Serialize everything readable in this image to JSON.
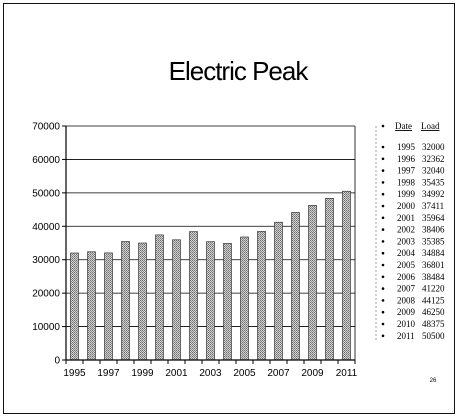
{
  "chart_data": {
    "type": "bar",
    "title": "Electric Peak",
    "categories": [
      "1995",
      "1996",
      "1997",
      "1998",
      "1999",
      "2000",
      "2001",
      "2002",
      "2003",
      "2004",
      "2005",
      "2006",
      "2007",
      "2008",
      "2009",
      "2010",
      "2011"
    ],
    "series": [
      {
        "values": [
          32000,
          32362,
          32040,
          35435,
          34992,
          37411,
          35964,
          38406,
          35385,
          34884,
          36801,
          38484,
          41220,
          44125,
          46250,
          48375,
          50500
        ]
      }
    ],
    "x_tick_labels": [
      "1995",
      "1997",
      "1999",
      "2001",
      "2003",
      "2005",
      "2007",
      "2009",
      "2011"
    ],
    "y_tick_labels": [
      "0",
      "10000",
      "20000",
      "30000",
      "40000",
      "50000",
      "60000",
      "70000"
    ],
    "y_ticks": [
      0,
      10000,
      20000,
      30000,
      40000,
      50000,
      60000,
      70000
    ],
    "ylim": [
      0,
      70000
    ],
    "grid": true,
    "legend_position": "right",
    "table_header": {
      "date": "Date",
      "load": "Load"
    },
    "table_rows": [
      {
        "date": "1995",
        "load": "32000"
      },
      {
        "date": "1996",
        "load": "32362"
      },
      {
        "date": "1997",
        "load": "32040"
      },
      {
        "date": "1998",
        "load": "35435"
      },
      {
        "date": "1999",
        "load": "34992"
      },
      {
        "date": "2000",
        "load": "37411"
      },
      {
        "date": "2001",
        "load": "35964"
      },
      {
        "date": "2002",
        "load": "38406"
      },
      {
        "date": "2003",
        "load": "35385"
      },
      {
        "date": "2004",
        "load": "34884"
      },
      {
        "date": "2005",
        "load": "36801"
      },
      {
        "date": "2006",
        "load": "38484"
      },
      {
        "date": "2007",
        "load": "41220"
      },
      {
        "date": "2008",
        "load": "44125"
      },
      {
        "date": "2009",
        "load": "46250"
      },
      {
        "date": "2010",
        "load": "48375"
      },
      {
        "date": "2011",
        "load": "50500"
      }
    ],
    "page_number": "26",
    "bar_color": "#8c8c8c"
  }
}
